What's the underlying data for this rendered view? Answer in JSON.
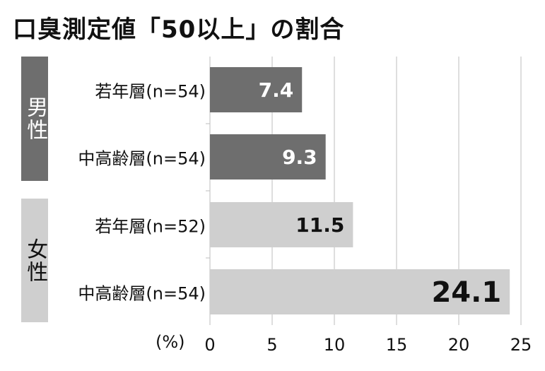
{
  "title": "口臭測定値「50以上」の割合",
  "chart_data": {
    "type": "bar",
    "orientation": "horizontal",
    "title": "口臭測定値「50以上」の割合",
    "groups": [
      {
        "label": "男性",
        "color": "#6e6e6e",
        "text_color": "#ffffff",
        "categories": [
          "若年層(n=54)",
          "中高齢層(n=54)"
        ],
        "values": [
          7.4,
          9.3
        ],
        "value_labels": [
          "7.4",
          "9.3"
        ]
      },
      {
        "label": "女性",
        "color": "#cfcfcf",
        "text_color": "#111111",
        "categories": [
          "若年層(n=52)",
          "中高齢層(n=54)"
        ],
        "values": [
          11.5,
          24.1
        ],
        "value_labels": [
          "11.5",
          "24.1"
        ]
      }
    ],
    "x_unit": "(%)",
    "xlim": [
      0,
      25
    ],
    "x_ticks": [
      "0",
      "5",
      "10",
      "15",
      "20",
      "25"
    ],
    "grid": true
  }
}
